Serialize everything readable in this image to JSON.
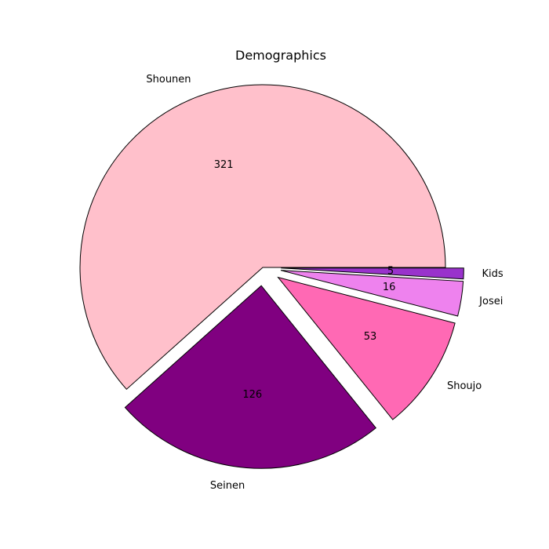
{
  "chart_data": {
    "type": "pie",
    "title": "Demographics",
    "categories": [
      "Shounen",
      "Seinen",
      "Shoujo",
      "Josei",
      "Kids"
    ],
    "values": [
      321,
      126,
      53,
      16,
      5
    ],
    "colors": [
      "#ffc0cb",
      "#800080",
      "#ff69b4",
      "#ee82ee",
      "#9932cc"
    ],
    "exploded": [
      false,
      true,
      true,
      true,
      true
    ],
    "start_angle_deg": 0,
    "direction": "counterclockwise",
    "edge_color": "#000000",
    "legend": "none"
  }
}
